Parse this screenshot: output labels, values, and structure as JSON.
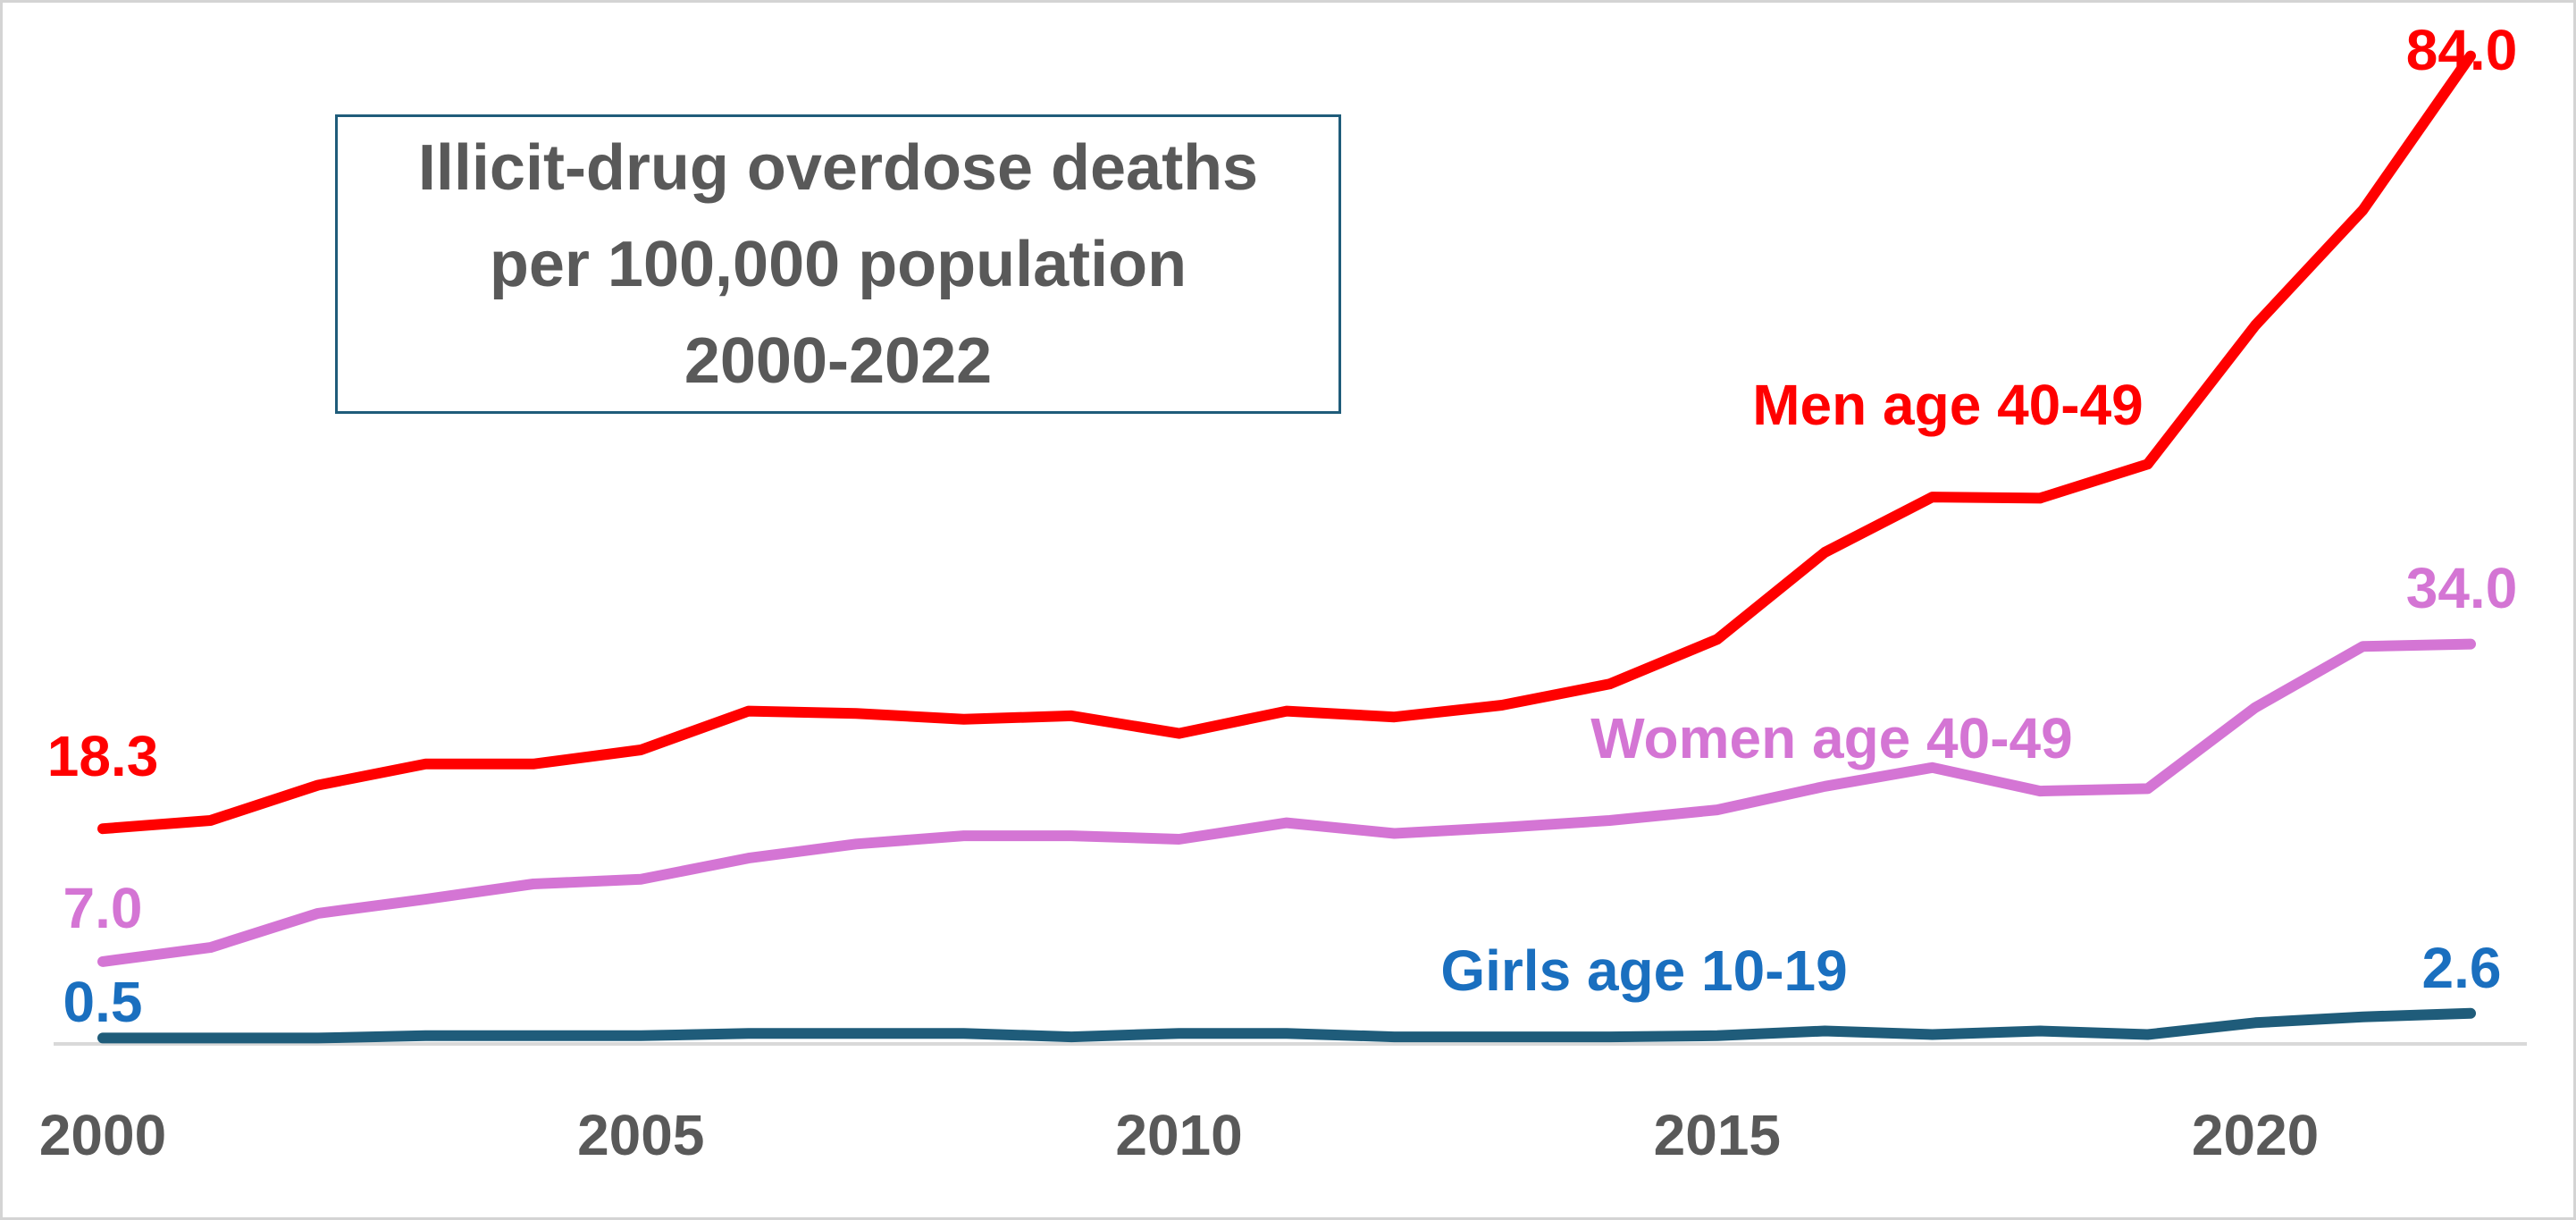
{
  "chart_data": {
    "type": "line",
    "title_lines": [
      "Illicit-drug overdose deaths",
      "per 100,000 population",
      "2000-2022"
    ],
    "x": [
      2000,
      2001,
      2002,
      2003,
      2004,
      2005,
      2006,
      2007,
      2008,
      2009,
      2010,
      2011,
      2012,
      2013,
      2014,
      2015,
      2016,
      2017,
      2018,
      2019,
      2020,
      2021,
      2022
    ],
    "x_ticks": [
      "2000",
      "2005",
      "2010",
      "2015",
      "2020"
    ],
    "xlim": [
      2000,
      2022
    ],
    "ylim": [
      0,
      88
    ],
    "grid": false,
    "legend": "none",
    "series": [
      {
        "name": "Men age 40-49",
        "color": "#ff0000",
        "values": [
          18.3,
          19.0,
          22.0,
          23.8,
          23.8,
          25.0,
          28.3,
          28.1,
          27.6,
          27.9,
          26.4,
          28.3,
          27.8,
          28.8,
          30.6,
          34.4,
          41.8,
          46.5,
          46.4,
          49.3,
          61.1,
          70.9,
          84.0
        ],
        "start_label": "18.3",
        "end_label": "84.0"
      },
      {
        "name": "Women age 40-49",
        "color": "#d475d4",
        "values": [
          7.0,
          8.2,
          11.1,
          12.3,
          13.6,
          14.0,
          15.8,
          17.0,
          17.7,
          17.7,
          17.4,
          18.8,
          17.9,
          18.4,
          19.0,
          19.9,
          21.9,
          23.5,
          21.5,
          21.7,
          28.6,
          33.8,
          34.0
        ],
        "start_label": "7.0",
        "end_label": "34.0"
      },
      {
        "name": "Girls age 10-19",
        "color": "#1f5c7a",
        "label_color": "#1a6fbf",
        "values": [
          0.5,
          0.5,
          0.5,
          0.7,
          0.7,
          0.7,
          0.9,
          0.9,
          0.9,
          0.6,
          0.9,
          0.9,
          0.6,
          0.6,
          0.6,
          0.7,
          1.1,
          0.8,
          1.1,
          0.8,
          1.8,
          2.3,
          2.6
        ],
        "start_label": "0.5",
        "end_label": "2.6"
      }
    ]
  }
}
